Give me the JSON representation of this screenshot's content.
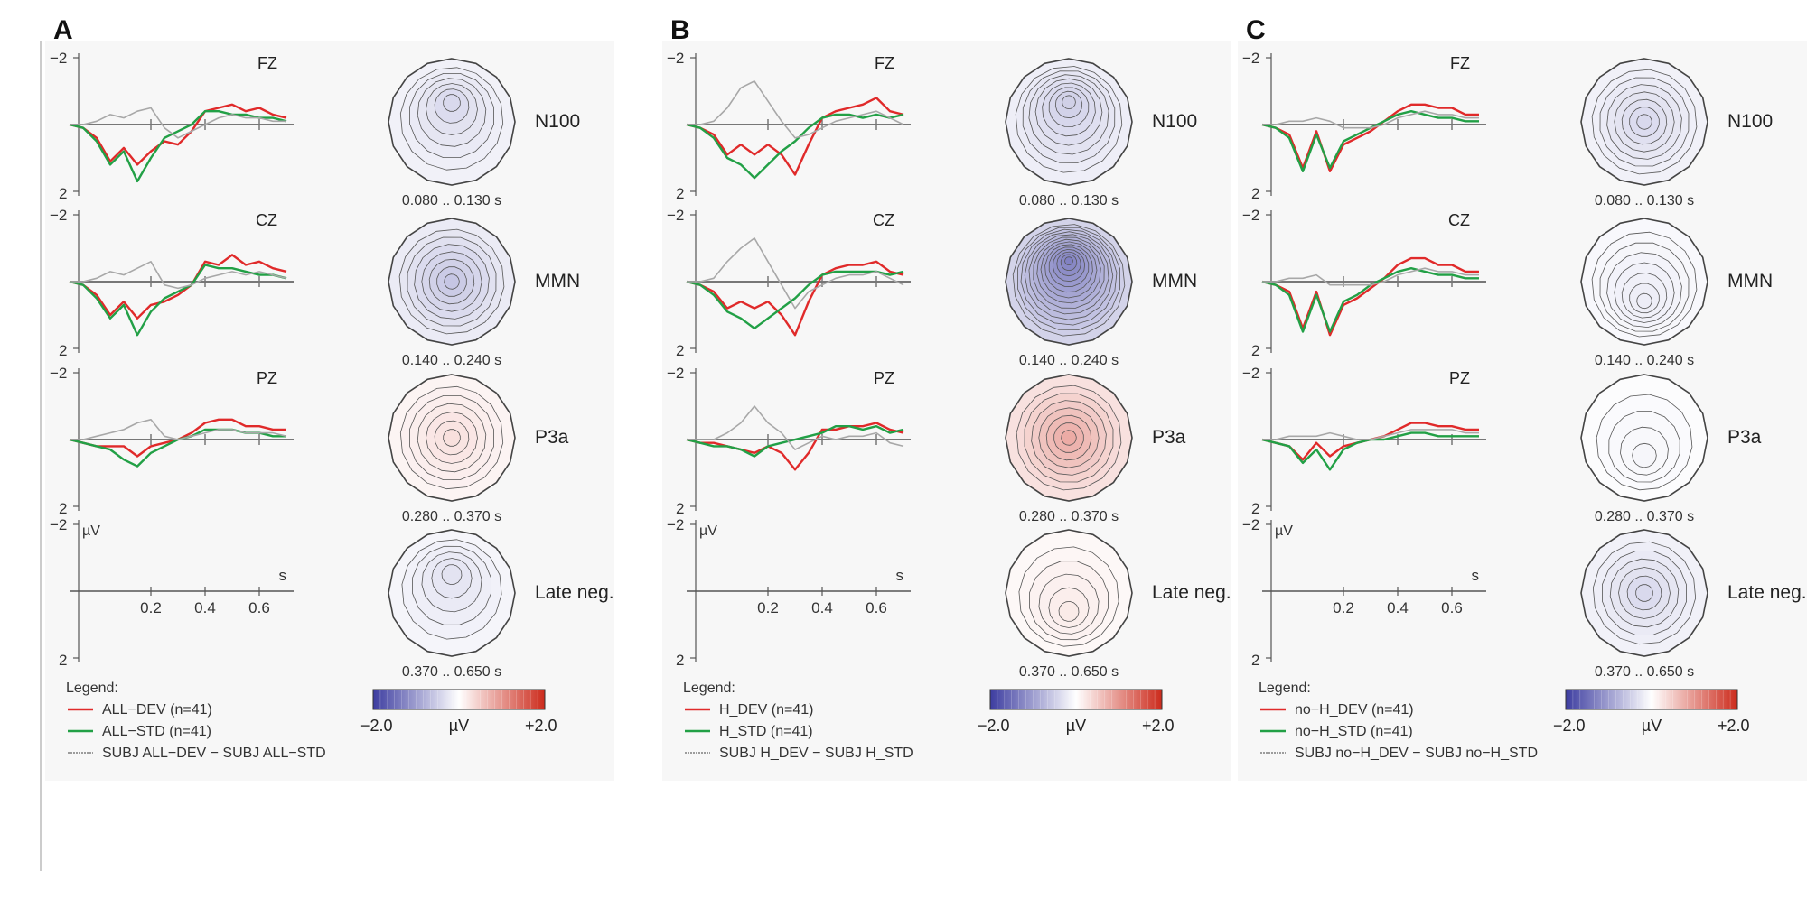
{
  "colors": {
    "dev": "#e02a2a",
    "std": "#22a046",
    "diff": "#a8a8a8",
    "axis": "#555555",
    "baseline": "#777777",
    "panel_bg": "#f7f7f7",
    "cbar_neg": "#3d3da0",
    "cbar_mid": "#ffffff",
    "cbar_pos": "#cc2b1c"
  },
  "chart_data": [
    {
      "type": "line",
      "panel_letter": "A",
      "channels": [
        "FZ",
        "CZ",
        "PZ"
      ],
      "y_ticks": [
        "−2",
        "2"
      ],
      "ylim": [
        2,
        -2
      ],
      "xlim": [
        -0.1,
        0.7
      ],
      "x_ticks": [
        "0.2",
        "0.4",
        "0.6"
      ],
      "xlabel": "s",
      "ylabel": "µV",
      "x": [
        -0.1,
        -0.05,
        0.0,
        0.05,
        0.1,
        0.15,
        0.2,
        0.25,
        0.3,
        0.35,
        0.4,
        0.45,
        0.5,
        0.55,
        0.6,
        0.65,
        0.7
      ],
      "series": [
        {
          "name": "ALL−DEV (n=41)",
          "role": "dev",
          "values": {
            "FZ": [
              0,
              0.1,
              0.4,
              1.1,
              0.7,
              1.2,
              0.8,
              0.5,
              0.6,
              0.2,
              -0.4,
              -0.5,
              -0.6,
              -0.4,
              -0.5,
              -0.3,
              -0.2
            ],
            "CZ": [
              0,
              0.1,
              0.4,
              1.0,
              0.6,
              1.1,
              0.7,
              0.6,
              0.4,
              0.1,
              -0.6,
              -0.5,
              -0.8,
              -0.5,
              -0.6,
              -0.4,
              -0.3
            ],
            "PZ": [
              0,
              0.1,
              0.2,
              0.2,
              0.2,
              0.5,
              0.2,
              0.1,
              0.0,
              -0.2,
              -0.5,
              -0.6,
              -0.6,
              -0.4,
              -0.4,
              -0.3,
              -0.3
            ]
          }
        },
        {
          "name": "ALL−STD (n=41)",
          "role": "std",
          "values": {
            "FZ": [
              0,
              0.1,
              0.5,
              1.2,
              0.8,
              1.7,
              1.0,
              0.4,
              0.2,
              0.0,
              -0.4,
              -0.4,
              -0.3,
              -0.3,
              -0.2,
              -0.2,
              -0.1
            ],
            "CZ": [
              0,
              0.1,
              0.5,
              1.1,
              0.7,
              1.6,
              0.9,
              0.5,
              0.3,
              0.1,
              -0.5,
              -0.4,
              -0.4,
              -0.3,
              -0.2,
              -0.2,
              -0.1
            ],
            "PZ": [
              0,
              0.1,
              0.2,
              0.3,
              0.6,
              0.8,
              0.4,
              0.2,
              0.0,
              -0.1,
              -0.3,
              -0.3,
              -0.3,
              -0.2,
              -0.2,
              -0.1,
              -0.1
            ]
          }
        },
        {
          "name": "SUBJ ALL−DEV − SUBJ ALL−STD",
          "role": "diff",
          "values": {
            "FZ": [
              0,
              0.0,
              -0.1,
              -0.3,
              -0.2,
              -0.4,
              -0.5,
              0.1,
              0.4,
              0.2,
              0.0,
              -0.2,
              -0.3,
              -0.2,
              -0.2,
              -0.1,
              -0.1
            ],
            "CZ": [
              0,
              0.0,
              -0.1,
              -0.3,
              -0.2,
              -0.4,
              -0.6,
              0.1,
              0.2,
              0.1,
              -0.1,
              -0.2,
              -0.3,
              -0.2,
              -0.3,
              -0.2,
              -0.1
            ],
            "PZ": [
              0,
              0.0,
              -0.1,
              -0.2,
              -0.3,
              -0.5,
              -0.6,
              -0.1,
              0.0,
              -0.1,
              -0.2,
              -0.3,
              -0.3,
              -0.2,
              -0.2,
              -0.2,
              -0.1
            ]
          }
        }
      ],
      "legend": {
        "title": "Legend:",
        "entries": [
          "ALL−DEV (n=41)",
          "ALL−STD (n=41)",
          "SUBJ ALL−DEV − SUBJ ALL−STD"
        ]
      },
      "topomaps": [
        {
          "component": "N100",
          "window": "0.080 .. 0.130 s",
          "mean_uv": -0.4,
          "contours": 6,
          "pattern": "front"
        },
        {
          "component": "MMN",
          "window": "0.140 .. 0.240 s",
          "mean_uv": -0.6,
          "contours": 7,
          "pattern": "center"
        },
        {
          "component": "P3a",
          "window": "0.280 .. 0.370 s",
          "mean_uv": 0.3,
          "contours": 6,
          "pattern": "center"
        },
        {
          "component": "Late neg.",
          "window": "0.370 .. 0.650 s",
          "mean_uv": -0.3,
          "contours": 5,
          "pattern": "front"
        }
      ],
      "colorbar": {
        "min_label": "−2.0",
        "unit": "µV",
        "max_label": "+2.0",
        "range": [
          -2.0,
          2.0
        ]
      }
    },
    {
      "type": "line",
      "panel_letter": "B",
      "channels": [
        "FZ",
        "CZ",
        "PZ"
      ],
      "y_ticks": [
        "−2",
        "2"
      ],
      "ylim": [
        2,
        -2
      ],
      "xlim": [
        -0.1,
        0.7
      ],
      "x_ticks": [
        "0.2",
        "0.4",
        "0.6"
      ],
      "xlabel": "s",
      "ylabel": "µV",
      "x": [
        -0.1,
        -0.05,
        0.0,
        0.05,
        0.1,
        0.15,
        0.2,
        0.25,
        0.3,
        0.35,
        0.4,
        0.45,
        0.5,
        0.55,
        0.6,
        0.65,
        0.7
      ],
      "series": [
        {
          "name": "H_DEV (n=41)",
          "role": "dev",
          "values": {
            "FZ": [
              0,
              0.1,
              0.3,
              0.9,
              0.6,
              0.9,
              0.6,
              0.9,
              1.5,
              0.6,
              -0.2,
              -0.4,
              -0.5,
              -0.6,
              -0.8,
              -0.4,
              -0.3
            ],
            "CZ": [
              0,
              0.1,
              0.3,
              0.8,
              0.6,
              0.8,
              0.6,
              1.0,
              1.6,
              0.6,
              -0.2,
              -0.4,
              -0.5,
              -0.5,
              -0.6,
              -0.3,
              -0.2
            ],
            "PZ": [
              0,
              0.1,
              0.1,
              0.2,
              0.3,
              0.4,
              0.2,
              0.4,
              0.9,
              0.4,
              -0.3,
              -0.3,
              -0.4,
              -0.4,
              -0.5,
              -0.3,
              -0.2
            ]
          }
        },
        {
          "name": "H_STD (n=41)",
          "role": "std",
          "values": {
            "FZ": [
              0,
              0.1,
              0.4,
              1.0,
              1.2,
              1.6,
              1.2,
              0.8,
              0.5,
              0.1,
              -0.2,
              -0.3,
              -0.3,
              -0.2,
              -0.3,
              -0.2,
              -0.3
            ],
            "CZ": [
              0,
              0.1,
              0.4,
              0.9,
              1.1,
              1.4,
              1.1,
              0.8,
              0.5,
              0.1,
              -0.2,
              -0.3,
              -0.3,
              -0.3,
              -0.3,
              -0.2,
              -0.3
            ],
            "PZ": [
              0,
              0.1,
              0.2,
              0.2,
              0.3,
              0.5,
              0.2,
              0.1,
              0.0,
              -0.1,
              -0.2,
              -0.4,
              -0.4,
              -0.3,
              -0.4,
              -0.2,
              -0.3
            ]
          }
        },
        {
          "name": "SUBJ H_DEV − SUBJ H_STD",
          "role": "diff",
          "values": {
            "FZ": [
              0,
              0.0,
              -0.1,
              -0.5,
              -1.1,
              -1.3,
              -0.7,
              -0.1,
              0.4,
              0.3,
              0.1,
              -0.1,
              -0.2,
              -0.3,
              -0.4,
              -0.2,
              0.0
            ],
            "CZ": [
              0,
              0.0,
              -0.1,
              -0.6,
              -1.0,
              -1.3,
              -0.6,
              0.1,
              0.8,
              0.3,
              0.1,
              -0.1,
              -0.2,
              -0.2,
              -0.3,
              -0.1,
              0.1
            ],
            "PZ": [
              0,
              0.0,
              0.0,
              -0.2,
              -0.5,
              -1.0,
              -0.5,
              -0.2,
              0.3,
              0.1,
              -0.1,
              0.0,
              -0.1,
              -0.1,
              -0.2,
              0.1,
              0.2
            ]
          }
        }
      ],
      "legend": {
        "title": "Legend:",
        "entries": [
          "H_DEV (n=41)",
          "H_STD (n=41)",
          "SUBJ H_DEV − SUBJ H_STD"
        ]
      },
      "topomaps": [
        {
          "component": "N100",
          "window": "0.080 .. 0.130 s",
          "mean_uv": -0.5,
          "contours": 8,
          "pattern": "front"
        },
        {
          "component": "MMN",
          "window": "0.140 .. 0.240 s",
          "mean_uv": -1.3,
          "contours": 14,
          "pattern": "front"
        },
        {
          "component": "P3a",
          "window": "0.280 .. 0.370 s",
          "mean_uv": 0.8,
          "contours": 7,
          "pattern": "center"
        },
        {
          "component": "Late neg.",
          "window": "0.370 .. 0.650 s",
          "mean_uv": 0.2,
          "contours": 5,
          "pattern": "back"
        }
      ],
      "colorbar": {
        "min_label": "−2.0",
        "unit": "µV",
        "max_label": "+2.0",
        "range": [
          -2.0,
          2.0
        ]
      }
    },
    {
      "type": "line",
      "panel_letter": "C",
      "channels": [
        "FZ",
        "CZ",
        "PZ"
      ],
      "y_ticks": [
        "−2",
        "2"
      ],
      "ylim": [
        2,
        -2
      ],
      "xlim": [
        -0.1,
        0.7
      ],
      "x_ticks": [
        "0.2",
        "0.4",
        "0.6"
      ],
      "xlabel": "s",
      "ylabel": "µV",
      "x": [
        -0.1,
        -0.05,
        0.0,
        0.05,
        0.1,
        0.15,
        0.2,
        0.25,
        0.3,
        0.35,
        0.4,
        0.45,
        0.5,
        0.55,
        0.6,
        0.65,
        0.7
      ],
      "series": [
        {
          "name": "no−H_DEV (n=41)",
          "role": "dev",
          "values": {
            "FZ": [
              0,
              0.1,
              0.3,
              1.3,
              0.2,
              1.4,
              0.6,
              0.4,
              0.2,
              -0.1,
              -0.4,
              -0.6,
              -0.6,
              -0.5,
              -0.5,
              -0.3,
              -0.3
            ],
            "CZ": [
              0,
              0.1,
              0.3,
              1.4,
              0.3,
              1.6,
              0.7,
              0.5,
              0.2,
              -0.1,
              -0.5,
              -0.7,
              -0.7,
              -0.5,
              -0.5,
              -0.3,
              -0.3
            ],
            "PZ": [
              0,
              0.1,
              0.2,
              0.6,
              0.1,
              0.5,
              0.2,
              0.1,
              0.0,
              -0.1,
              -0.3,
              -0.5,
              -0.5,
              -0.4,
              -0.4,
              -0.3,
              -0.3
            ]
          }
        },
        {
          "name": "no−H_STD (n=41)",
          "role": "std",
          "values": {
            "FZ": [
              0,
              0.1,
              0.4,
              1.4,
              0.3,
              1.3,
              0.5,
              0.3,
              0.1,
              -0.1,
              -0.3,
              -0.4,
              -0.3,
              -0.2,
              -0.2,
              -0.1,
              -0.1
            ],
            "CZ": [
              0,
              0.1,
              0.4,
              1.5,
              0.4,
              1.5,
              0.6,
              0.4,
              0.1,
              -0.1,
              -0.3,
              -0.4,
              -0.3,
              -0.2,
              -0.2,
              -0.1,
              -0.1
            ],
            "PZ": [
              0,
              0.1,
              0.2,
              0.7,
              0.3,
              0.9,
              0.3,
              0.1,
              0.0,
              0.0,
              -0.1,
              -0.2,
              -0.2,
              -0.1,
              -0.1,
              -0.1,
              -0.1
            ]
          }
        },
        {
          "name": "SUBJ no−H_DEV − SUBJ no−H_STD",
          "role": "diff",
          "values": {
            "FZ": [
              0,
              0.0,
              -0.1,
              -0.1,
              -0.2,
              -0.1,
              0.1,
              0.1,
              0.1,
              0.0,
              -0.2,
              -0.3,
              -0.4,
              -0.3,
              -0.3,
              -0.2,
              -0.2
            ],
            "CZ": [
              0,
              0.0,
              -0.1,
              -0.1,
              -0.2,
              0.1,
              0.1,
              0.1,
              0.1,
              0.0,
              -0.2,
              -0.3,
              -0.4,
              -0.3,
              -0.3,
              -0.2,
              -0.2
            ],
            "PZ": [
              0,
              0.0,
              -0.1,
              -0.1,
              -0.1,
              -0.2,
              -0.1,
              0.0,
              0.0,
              -0.1,
              -0.2,
              -0.3,
              -0.3,
              -0.3,
              -0.3,
              -0.2,
              -0.2
            ]
          }
        }
      ],
      "legend": {
        "title": "Legend:",
        "entries": [
          "no−H_DEV (n=41)",
          "no−H_STD (n=41)",
          "SUBJ no−H_DEV − SUBJ no−H_STD"
        ]
      },
      "topomaps": [
        {
          "component": "N100",
          "window": "0.080 .. 0.130 s",
          "mean_uv": -0.4,
          "contours": 7,
          "pattern": "center"
        },
        {
          "component": "MMN",
          "window": "0.140 .. 0.240 s",
          "mean_uv": -0.2,
          "contours": 7,
          "pattern": "back"
        },
        {
          "component": "P3a",
          "window": "0.280 .. 0.370 s",
          "mean_uv": -0.1,
          "contours": 4,
          "pattern": "back"
        },
        {
          "component": "Late neg.",
          "window": "0.370 .. 0.650 s",
          "mean_uv": -0.4,
          "contours": 6,
          "pattern": "center"
        }
      ],
      "colorbar": {
        "min_label": "−2.0",
        "unit": "µV",
        "max_label": "+2.0",
        "range": [
          -2.0,
          2.0
        ]
      }
    }
  ]
}
